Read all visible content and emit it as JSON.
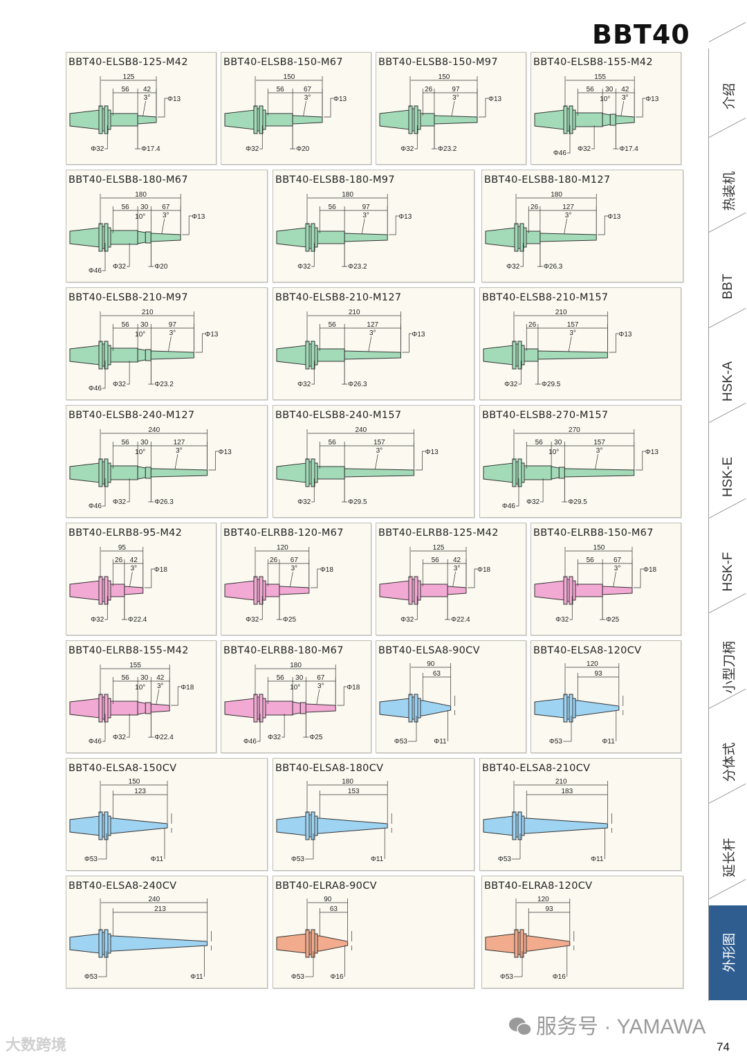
{
  "header": {
    "title": "BBT40"
  },
  "colors": {
    "green": "#a3dbb8",
    "pink": "#f2a9d3",
    "blue": "#9fd3f2",
    "orange": "#f2ab8c",
    "outline": "#333333",
    "tab_active": "#2f5d8f"
  },
  "cards": [
    {
      "title": "BBT40-ELSB8-125-M42",
      "color": "green",
      "total": "125",
      "segs": [
        "56",
        "42"
      ],
      "angles": [
        "3°"
      ],
      "tip_d": "Φ13",
      "d": [
        "Φ32",
        "Φ17.4"
      ]
    },
    {
      "title": "BBT40-ELSB8-150-M67",
      "color": "green",
      "total": "150",
      "segs": [
        "56",
        "67"
      ],
      "angles": [
        "3°"
      ],
      "tip_d": "Φ13",
      "d": [
        "Φ32",
        "Φ20"
      ]
    },
    {
      "title": "BBT40-ELSB8-150-M97",
      "color": "green",
      "total": "150",
      "segs": [
        "26",
        "97"
      ],
      "angles": [
        "3°"
      ],
      "tip_d": "Φ13",
      "d": [
        "Φ32",
        "Φ23.2"
      ]
    },
    {
      "title": "BBT40-ELSB8-155-M42",
      "color": "green",
      "total": "155",
      "segs": [
        "56",
        "30",
        "42"
      ],
      "angles": [
        "10°",
        "3°"
      ],
      "tip_d": "Φ13",
      "d": [
        "Φ46",
        "Φ32",
        "Φ17.4"
      ]
    },
    {
      "title": "BBT40-ELSB8-180-M67",
      "color": "green",
      "total": "180",
      "segs": [
        "56",
        "30",
        "67"
      ],
      "angles": [
        "10°",
        "3°"
      ],
      "tip_d": "Φ13",
      "d": [
        "Φ46",
        "Φ32",
        "Φ20"
      ]
    },
    {
      "title": "BBT40-ELSB8-180-M97",
      "color": "green",
      "total": "180",
      "segs": [
        "56",
        "97"
      ],
      "angles": [
        "3°"
      ],
      "tip_d": "Φ13",
      "d": [
        "Φ32",
        "Φ23.2"
      ]
    },
    {
      "title": "BBT40-ELSB8-180-M127",
      "color": "green",
      "total": "180",
      "segs": [
        "26",
        "127"
      ],
      "angles": [
        "3°"
      ],
      "tip_d": "Φ13",
      "d": [
        "Φ32",
        "Φ26.3"
      ]
    },
    {
      "title": "BBT40-ELSB8-210-M97",
      "color": "green",
      "total": "210",
      "segs": [
        "56",
        "30",
        "97"
      ],
      "angles": [
        "10°",
        "3°"
      ],
      "tip_d": "Φ13",
      "d": [
        "Φ46",
        "Φ32",
        "Φ23.2"
      ]
    },
    {
      "title": "BBT40-ELSB8-210-M127",
      "color": "green",
      "total": "210",
      "segs": [
        "56",
        "127"
      ],
      "angles": [
        "3°"
      ],
      "tip_d": "Φ13",
      "d": [
        "Φ32",
        "Φ26.3"
      ]
    },
    {
      "title": "BBT40-ELSB8-210-M157",
      "color": "green",
      "total": "210",
      "segs": [
        "26",
        "157"
      ],
      "angles": [
        "3°"
      ],
      "tip_d": "Φ13",
      "d": [
        "Φ32",
        "Φ29.5"
      ]
    },
    {
      "title": "BBT40-ELSB8-240-M127",
      "color": "green",
      "total": "240",
      "segs": [
        "56",
        "30",
        "127"
      ],
      "angles": [
        "10°",
        "3°"
      ],
      "tip_d": "Φ13",
      "d": [
        "Φ46",
        "Φ32",
        "Φ26.3"
      ]
    },
    {
      "title": "BBT40-ELSB8-240-M157",
      "color": "green",
      "total": "240",
      "segs": [
        "56",
        "157"
      ],
      "angles": [
        "3°"
      ],
      "tip_d": "Φ13",
      "d": [
        "Φ32",
        "Φ29.5"
      ]
    },
    {
      "title": "BBT40-ELSB8-270-M157",
      "color": "green",
      "total": "270",
      "segs": [
        "56",
        "30",
        "157"
      ],
      "angles": [
        "10°",
        "3°"
      ],
      "tip_d": "Φ13",
      "d": [
        "Φ46",
        "Φ32",
        "Φ29.5"
      ]
    },
    {
      "title": "BBT40-ELRB8-95-M42",
      "color": "pink",
      "total": "95",
      "segs": [
        "26",
        "42"
      ],
      "angles": [
        "3°"
      ],
      "tip_d": "Φ18",
      "d": [
        "Φ32",
        "Φ22.4"
      ]
    },
    {
      "title": "BBT40-ELRB8-120-M67",
      "color": "pink",
      "total": "120",
      "segs": [
        "26",
        "67"
      ],
      "angles": [
        "3°"
      ],
      "tip_d": "Φ18",
      "d": [
        "Φ32",
        "Φ25"
      ]
    },
    {
      "title": "BBT40-ELRB8-125-M42",
      "color": "pink",
      "total": "125",
      "segs": [
        "56",
        "42"
      ],
      "angles": [
        "3°"
      ],
      "tip_d": "Φ18",
      "d": [
        "Φ32",
        "Φ22.4"
      ]
    },
    {
      "title": "BBT40-ELRB8-150-M67",
      "color": "pink",
      "total": "150",
      "segs": [
        "56",
        "67"
      ],
      "angles": [
        "3°"
      ],
      "tip_d": "Φ18",
      "d": [
        "Φ32",
        "Φ25"
      ]
    },
    {
      "title": "BBT40-ELRB8-155-M42",
      "color": "pink",
      "total": "155",
      "segs": [
        "56",
        "30",
        "42"
      ],
      "angles": [
        "10°",
        "3°"
      ],
      "tip_d": "Φ18",
      "d": [
        "Φ46",
        "Φ32",
        "Φ22.4"
      ]
    },
    {
      "title": "BBT40-ELRB8-180-M67",
      "color": "pink",
      "total": "180",
      "segs": [
        "56",
        "30",
        "67"
      ],
      "angles": [
        "10°",
        "3°"
      ],
      "tip_d": "Φ18",
      "d": [
        "Φ46",
        "Φ32",
        "Φ25"
      ]
    },
    {
      "title": "BBT40-ELSA8-90CV",
      "color": "blue",
      "total": "90",
      "segs": [
        "63"
      ],
      "angles": [],
      "tip_d": "",
      "d": [
        "Φ53",
        "Φ11"
      ]
    },
    {
      "title": "BBT40-ELSA8-120CV",
      "color": "blue",
      "total": "120",
      "segs": [
        "93"
      ],
      "angles": [],
      "tip_d": "",
      "d": [
        "Φ53",
        "Φ11"
      ]
    },
    {
      "title": "BBT40-ELSA8-150CV",
      "color": "blue",
      "total": "150",
      "segs": [
        "123"
      ],
      "angles": [],
      "tip_d": "",
      "d": [
        "Φ53",
        "Φ11"
      ]
    },
    {
      "title": "BBT40-ELSA8-180CV",
      "color": "blue",
      "total": "180",
      "segs": [
        "153"
      ],
      "angles": [],
      "tip_d": "",
      "d": [
        "Φ53",
        "Φ11"
      ]
    },
    {
      "title": "BBT40-ELSA8-210CV",
      "color": "blue",
      "total": "210",
      "segs": [
        "183"
      ],
      "angles": [],
      "tip_d": "",
      "d": [
        "Φ53",
        "Φ11"
      ]
    },
    {
      "title": "BBT40-ELSA8-240CV",
      "color": "blue",
      "total": "240",
      "segs": [
        "213"
      ],
      "angles": [],
      "tip_d": "",
      "d": [
        "Φ53",
        "Φ11"
      ]
    },
    {
      "title": "BBT40-ELRA8-90CV",
      "color": "orange",
      "total": "90",
      "segs": [
        "63"
      ],
      "angles": [],
      "tip_d": "",
      "d": [
        "Φ53",
        "Φ16"
      ]
    },
    {
      "title": "BBT40-ELRA8-120CV",
      "color": "orange",
      "total": "120",
      "segs": [
        "93"
      ],
      "angles": [],
      "tip_d": "",
      "d": [
        "Φ53",
        "Φ16"
      ]
    }
  ],
  "sidebar": {
    "tabs": [
      {
        "label": "介绍",
        "active": false
      },
      {
        "label": "热装机",
        "active": false
      },
      {
        "label": "BBT",
        "active": false
      },
      {
        "label": "HSK-A",
        "active": false
      },
      {
        "label": "HSK-E",
        "active": false
      },
      {
        "label": "HSK-F",
        "active": false
      },
      {
        "label": "小型刀柄",
        "active": false
      },
      {
        "label": "分体式",
        "active": false
      },
      {
        "label": "延长杆",
        "active": false
      },
      {
        "label": "外形图",
        "active": true
      }
    ]
  },
  "footer": {
    "page_number": "74",
    "watermark": "服务号 · YAMAWA",
    "watermark2": "大数跨境"
  }
}
